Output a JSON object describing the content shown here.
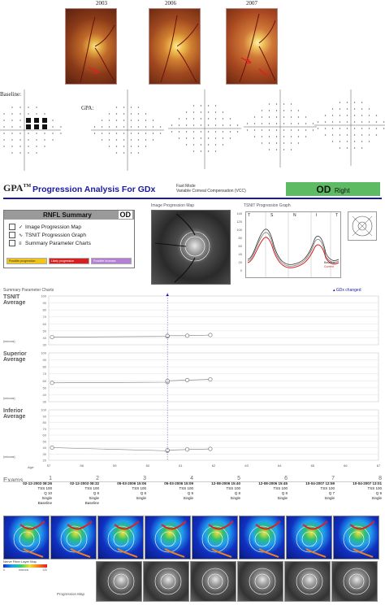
{
  "photos": [
    {
      "year": "2003"
    },
    {
      "year": "2006"
    },
    {
      "year": "2007"
    }
  ],
  "vf": {
    "baseline_label": "Baseline:",
    "gpa_label": "GPA:"
  },
  "header": {
    "logo": "GPA",
    "logo_sup": "TM",
    "title": "Progression Analysis For GDx",
    "mode1": "Fast Mode",
    "mode2": "Variable Corneal Compensation (VCC)",
    "eye": "OD",
    "eye_side": "Right"
  },
  "rnfl": {
    "title": "RNFL Summary",
    "eye": "OD",
    "items": [
      "Image Progression Map",
      "TSNIT Progression Graph",
      "Summary Parameter Charts"
    ],
    "legend": [
      "Possible progression",
      "Likely progression",
      "Possible Increase"
    ]
  },
  "ipm": {
    "title": "Image Progression Map"
  },
  "tsnit_graph": {
    "title": "TSNIT Progression Graph",
    "sectors": [
      "T",
      "S",
      "N",
      "I",
      "T"
    ],
    "yticks": [
      "140",
      "120",
      "100",
      "80",
      "60",
      "40",
      "20",
      "0"
    ],
    "legend": [
      "Baseline",
      "Current"
    ]
  },
  "summary": {
    "title": "Summary Parameter Charts",
    "changed": "GDx changed",
    "unit": "(microns)",
    "charts": [
      {
        "label1": "TSNIT",
        "label2": "Average",
        "yticks": [
          "100",
          "90",
          "80",
          "70",
          "60",
          "50",
          "40",
          "30"
        ]
      },
      {
        "label1": "Superior",
        "label2": "Average",
        "yticks": [
          "100",
          "90",
          "80",
          "70",
          "60",
          "50",
          "40",
          "30"
        ]
      },
      {
        "label1": "Inferior",
        "label2": "Average",
        "yticks": [
          "100",
          "90",
          "80",
          "70",
          "60",
          "50",
          "40",
          "30",
          "20"
        ]
      }
    ],
    "age_label": "Age:",
    "ages": [
      "57",
      "58",
      "59",
      "60",
      "61",
      "62",
      "63",
      "64",
      "65",
      "66",
      "67"
    ]
  },
  "chart_data": {
    "type": "line",
    "xlabel": "Age",
    "xlim": [
      57,
      67
    ],
    "series": [
      {
        "name": "TSNIT Average",
        "x": [
          57.1,
          60.6,
          60.6,
          61.2,
          61.9
        ],
        "y": [
          41,
          42,
          43,
          43,
          44
        ]
      },
      {
        "name": "Superior Average",
        "x": [
          57.1,
          60.6,
          60.6,
          61.2,
          61.9
        ],
        "y": [
          57,
          58,
          60,
          61,
          62
        ]
      },
      {
        "name": "Inferior Average",
        "x": [
          57.1,
          60.6,
          60.6,
          61.2,
          61.9
        ],
        "y": [
          40,
          35,
          36,
          37,
          38
        ]
      }
    ]
  },
  "exams": {
    "label": "Exams",
    "items": [
      {
        "num": "1",
        "date": "02-12-2003 08:26",
        "tss": "TSS 100",
        "q": "Q 10",
        "mode": "Single",
        "tag": "Baseline"
      },
      {
        "num": "2",
        "date": "02-12-2003 08:32",
        "tss": "TSS 100",
        "q": "Q 8",
        "mode": "Single",
        "tag": "Baseline"
      },
      {
        "num": "3",
        "date": "05-03-2006 15:06",
        "tss": "TSS 100",
        "q": "Q 8",
        "mode": "Single",
        "tag": ""
      },
      {
        "num": "4",
        "date": "05-03-2006 15:09",
        "tss": "TSS 100",
        "q": "Q 9",
        "mode": "Single",
        "tag": ""
      },
      {
        "num": "5",
        "date": "12-08-2006 15:40",
        "tss": "TSS 100",
        "q": "Q 8",
        "mode": "Single",
        "tag": ""
      },
      {
        "num": "6",
        "date": "12-08-2006 15:45",
        "tss": "TSS 100",
        "q": "Q 8",
        "mode": "Single",
        "tag": ""
      },
      {
        "num": "7",
        "date": "10-04-2007 12:59",
        "tss": "TSS 100",
        "q": "Q 7",
        "mode": "Single",
        "tag": ""
      },
      {
        "num": "8",
        "date": "10-04-2007 13:01",
        "tss": "TSS 100",
        "q": "Q 9",
        "mode": "Single",
        "tag": ""
      }
    ],
    "nfl_label": "Nerve Fiber Layer Map",
    "nfl_scale": [
      "0",
      "microns",
      "120"
    ],
    "pm_label": "Progression Map"
  },
  "colors": {
    "brand": "#1a1aa0",
    "od_bg": "#5dbb63",
    "likely": "#d42020",
    "possible": "#f0c419",
    "increase": "#b57fd6"
  }
}
